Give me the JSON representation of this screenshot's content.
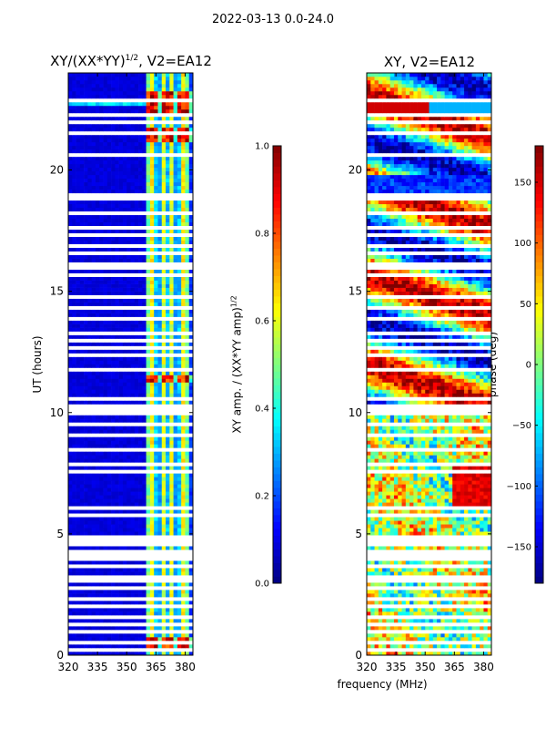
{
  "figure_title": "2022-03-13 0.0-24.0",
  "colors": {
    "gap": "#ffffff",
    "frame": "#000000"
  },
  "chart_data": [
    {
      "type": "heatmap",
      "title": "XY/(XX*YY)^{1/2}, V2=EA12",
      "title_base": "XY/(XX*YY)",
      "title_sup": "1/2",
      "title_tail": ", V2=EA12",
      "xlabel": "",
      "ylabel": "UT (hours)",
      "xlim": [
        320,
        384
      ],
      "ylim": [
        0,
        24
      ],
      "xticks": [
        320,
        335,
        350,
        365,
        380
      ],
      "yticks": [
        0,
        5,
        10,
        15,
        20
      ],
      "colormap": "jet",
      "colorbar": {
        "label": "XY amp. / (XX*YY amp)^{1/2}",
        "label_base": "XY amp. / (XX*YY amp)",
        "label_sup": "1/2",
        "range": [
          0.0,
          1.0
        ],
        "ticks": [
          "0.0",
          "0.2",
          "0.4",
          "0.6",
          "0.8",
          "1.0"
        ]
      },
      "features": "low amplitude (~0.05) below 361 MHz; elevated 0.3-0.7 in 361-384 MHz band with bright spots (~0.8-1.0) near 22.5-23 UT and ~0.5 UT; many blank horizontal gaps"
    },
    {
      "type": "heatmap",
      "title": "XY, V2=EA12",
      "xlabel": "frequency (MHz)",
      "ylabel": "",
      "xlim": [
        320,
        384
      ],
      "ylim": [
        0,
        24
      ],
      "xticks": [
        320,
        335,
        350,
        365,
        380
      ],
      "yticks": [
        0,
        5,
        10,
        15,
        20
      ],
      "colormap": "jet",
      "colorbar": {
        "label": "phase (deg)",
        "range": [
          -180,
          180
        ],
        "ticks": [
          "150",
          "100",
          "50",
          "0",
          "−50",
          "−100",
          "−150"
        ],
        "tick_values": [
          150,
          100,
          50,
          0,
          -50,
          -100,
          -150
        ]
      },
      "features": "phase varies across full range; noisy yellow/green/red at low UT; smooth banded structure at high UT; many blank gaps"
    }
  ]
}
